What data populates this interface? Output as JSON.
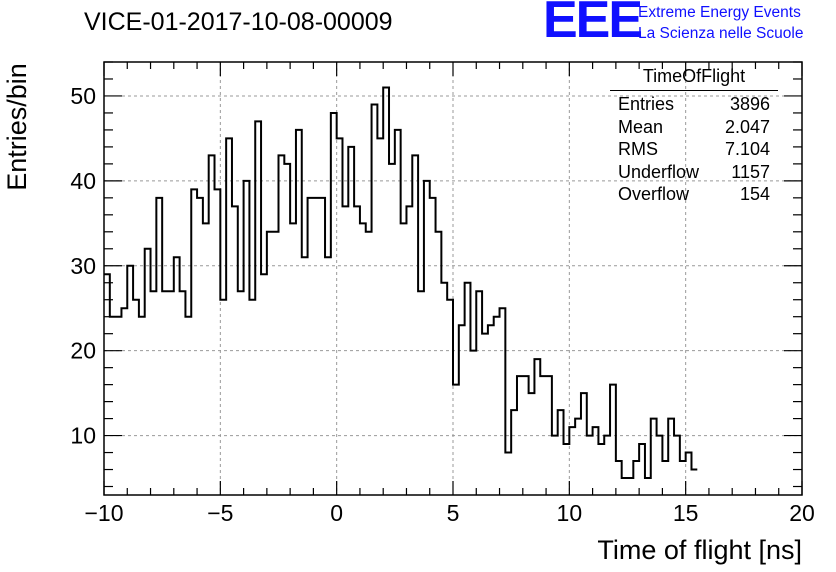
{
  "title": "VICE-01-2017-10-08-00009",
  "logo": {
    "mark": "EEE",
    "line1": "Extreme Energy Events",
    "line2": "La Scienza nelle Scuole",
    "color": "#1010ff"
  },
  "stats": {
    "title": "TimeOfFlight",
    "rows": [
      {
        "label": "Entries",
        "value": "3896"
      },
      {
        "label": "Mean",
        "value": "2.047"
      },
      {
        "label": "RMS",
        "value": "7.104"
      },
      {
        "label": "Underflow",
        "value": "1157"
      },
      {
        "label": "Overflow",
        "value": "154"
      }
    ]
  },
  "chart_data": {
    "type": "histogram",
    "title": "VICE-01-2017-10-08-00009",
    "xlabel": "Time of flight [ns]",
    "ylabel": "Entries/bin",
    "xlim": [
      -10,
      20
    ],
    "ylim": [
      3,
      54
    ],
    "grid": true,
    "bin_width": 0.25,
    "x_ticks": [
      -10,
      -5,
      0,
      5,
      10,
      15,
      20
    ],
    "y_ticks": [
      10,
      20,
      30,
      40,
      50
    ],
    "values": [
      29,
      24,
      24,
      25,
      30,
      26,
      24,
      32,
      27,
      38,
      27,
      27,
      31,
      27,
      24,
      39,
      38,
      35,
      43,
      39,
      26,
      45,
      37,
      27,
      40,
      26,
      47,
      29,
      34,
      34,
      43,
      42,
      35,
      46,
      31,
      38,
      38,
      38,
      31,
      48,
      45,
      37,
      44,
      37,
      35,
      34,
      49,
      45,
      51,
      42,
      46,
      35,
      37,
      43,
      27,
      40,
      38,
      34,
      28,
      26,
      16,
      23,
      28,
      20,
      27,
      22,
      23,
      24,
      25,
      8,
      13,
      17,
      17,
      15,
      19,
      17,
      17,
      10,
      13,
      9,
      11,
      12,
      15,
      10,
      11,
      9,
      10,
      16,
      7,
      5,
      5,
      7,
      9,
      5,
      12,
      10,
      7,
      12,
      10,
      7,
      8,
      6
    ],
    "line_color": "#000000"
  }
}
